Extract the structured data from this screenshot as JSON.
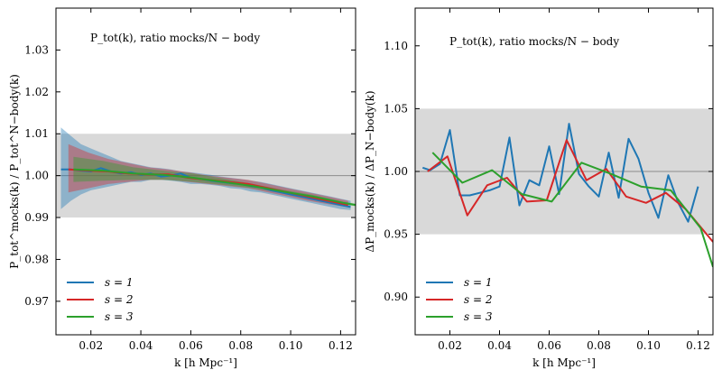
{
  "chart_data": [
    {
      "type": "line",
      "annotation": "P_tot(k), ratio mocks/N − body",
      "xlabel": "k [h Mpc⁻¹]",
      "ylabel": "P_tot^mocks(k) / P_tot^N−body(k)",
      "xlim": [
        0.006,
        0.126
      ],
      "ylim": [
        0.962,
        1.04
      ],
      "xticks": [
        0.02,
        0.04,
        0.06,
        0.08,
        0.1,
        0.12
      ],
      "xtick_labels": [
        "0.02",
        "0.04",
        "0.06",
        "0.08",
        "0.10",
        "0.12"
      ],
      "yticks": [
        0.97,
        0.98,
        0.99,
        1.0,
        1.01,
        1.02,
        1.03
      ],
      "ytick_labels": [
        "0.97",
        "0.98",
        "0.99",
        "1.00",
        "1.01",
        "1.02",
        "1.03"
      ],
      "reference_line": 1.0,
      "shaded_band": [
        0.99,
        1.01
      ],
      "legend_position": "lower-left",
      "grid": false,
      "series": [
        {
          "name": "s = 1",
          "color": "#1f77b4",
          "x": [
            0.008,
            0.012,
            0.016,
            0.02,
            0.024,
            0.028,
            0.032,
            0.036,
            0.04,
            0.044,
            0.048,
            0.052,
            0.056,
            0.06,
            0.064,
            0.068,
            0.072,
            0.076,
            0.08,
            0.084,
            0.088,
            0.092,
            0.096,
            0.1,
            0.104,
            0.108,
            0.112,
            0.116,
            0.12,
            0.124
          ],
          "y": [
            1.0015,
            1.0015,
            1.0012,
            1.001,
            1.0018,
            1.001,
            1.0005,
            1.0008,
            1.0002,
            1.0005,
            0.9998,
            1.0,
            1.0005,
            0.9995,
            0.9992,
            0.9988,
            0.9985,
            0.9982,
            0.998,
            0.9975,
            0.9972,
            0.9965,
            0.996,
            0.9955,
            0.995,
            0.9945,
            0.994,
            0.9935,
            0.993,
            0.9925
          ],
          "lower": [
            0.992,
            0.994,
            0.9955,
            0.9965,
            0.997,
            0.9975,
            0.998,
            0.9985,
            0.9985,
            0.999,
            0.999,
            0.9988,
            0.9985,
            0.998,
            0.998,
            0.9978,
            0.9975,
            0.997,
            0.9968,
            0.9962,
            0.996,
            0.9955,
            0.995,
            0.9945,
            0.994,
            0.9935,
            0.993,
            0.9925,
            0.992,
            0.9918
          ],
          "upper": [
            1.0115,
            1.0095,
            1.0075,
            1.0065,
            1.0055,
            1.0045,
            1.0035,
            1.003,
            1.0025,
            1.002,
            1.0018,
            1.0015,
            1.001,
            1.0008,
            1.0005,
            1.0002,
            0.9998,
            0.9995,
            0.9992,
            0.9988,
            0.9985,
            0.998,
            0.9975,
            0.997,
            0.9965,
            0.996,
            0.9955,
            0.995,
            0.9945,
            0.994
          ]
        },
        {
          "name": "s = 2",
          "color": "#d62728",
          "x": [
            0.011,
            0.019,
            0.027,
            0.035,
            0.043,
            0.051,
            0.059,
            0.067,
            0.075,
            0.083,
            0.091,
            0.099,
            0.107,
            0.115,
            0.123
          ],
          "y": [
            1.0015,
            1.0012,
            1.001,
            1.0005,
            1.0003,
            1.0003,
            0.9995,
            0.999,
            0.9985,
            0.998,
            0.997,
            0.996,
            0.995,
            0.994,
            0.993
          ],
          "lower": [
            0.996,
            0.997,
            0.998,
            0.9985,
            0.999,
            0.999,
            0.9985,
            0.998,
            0.9975,
            0.997,
            0.996,
            0.995,
            0.994,
            0.9932,
            0.9925
          ],
          "upper": [
            1.0075,
            1.0055,
            1.004,
            1.003,
            1.002,
            1.0015,
            1.0008,
            1.0,
            0.9995,
            0.999,
            0.998,
            0.997,
            0.996,
            0.995,
            0.994
          ]
        },
        {
          "name": "s = 3",
          "color": "#2ca02c",
          "x": [
            0.013,
            0.025,
            0.037,
            0.049,
            0.061,
            0.073,
            0.085,
            0.097,
            0.109,
            0.121,
            0.126
          ],
          "y": [
            1.0015,
            1.0012,
            1.0005,
            1.0002,
            0.9995,
            0.9985,
            0.9975,
            0.9962,
            0.995,
            0.9935,
            0.993
          ],
          "lower": [
            0.9985,
            0.9988,
            0.999,
            0.999,
            0.9985,
            0.9978,
            0.997,
            0.9958,
            0.9946,
            0.9932,
            0.9927
          ],
          "upper": [
            1.0045,
            1.0035,
            1.002,
            1.0012,
            1.0005,
            0.9993,
            0.998,
            0.9966,
            0.9954,
            0.9938,
            0.9933
          ]
        }
      ]
    },
    {
      "type": "line",
      "annotation": "P_tot(k), ratio mocks/N − body",
      "xlabel": "k [h Mpc⁻¹]",
      "ylabel": "ΔP_mocks(k) / ΔP_N−body(k)",
      "xlim": [
        0.006,
        0.126
      ],
      "ylim": [
        0.87,
        1.13
      ],
      "xticks": [
        0.02,
        0.04,
        0.06,
        0.08,
        0.1,
        0.12
      ],
      "xtick_labels": [
        "0.02",
        "0.04",
        "0.06",
        "0.08",
        "0.10",
        "0.12"
      ],
      "yticks": [
        0.9,
        0.95,
        1.0,
        1.05,
        1.1
      ],
      "ytick_labels": [
        "0.90",
        "0.95",
        "1.00",
        "1.05",
        "1.10"
      ],
      "reference_line": 1.0,
      "shaded_band": [
        0.95,
        1.05
      ],
      "legend_position": "lower-left",
      "grid": false,
      "series": [
        {
          "name": "s = 1",
          "color": "#1f77b4",
          "x": [
            0.009,
            0.012,
            0.016,
            0.02,
            0.024,
            0.028,
            0.032,
            0.036,
            0.04,
            0.044,
            0.048,
            0.052,
            0.056,
            0.06,
            0.064,
            0.068,
            0.072,
            0.076,
            0.08,
            0.084,
            0.088,
            0.092,
            0.096,
            0.1,
            0.104,
            0.108,
            0.112,
            0.116,
            0.12
          ],
          "y": [
            1.003,
            1.001,
            1.006,
            1.033,
            0.981,
            0.981,
            0.983,
            0.985,
            0.988,
            1.027,
            0.973,
            0.993,
            0.989,
            1.02,
            0.982,
            1.038,
            0.998,
            0.988,
            0.98,
            1.015,
            0.979,
            1.026,
            1.01,
            0.983,
            0.963,
            0.997,
            0.975,
            0.96,
            0.988
          ]
        },
        {
          "name": "s = 2",
          "color": "#d62728",
          "x": [
            0.011,
            0.019,
            0.027,
            0.035,
            0.043,
            0.051,
            0.059,
            0.067,
            0.075,
            0.083,
            0.091,
            0.099,
            0.107,
            0.115,
            0.126
          ],
          "y": [
            1.0,
            1.012,
            0.965,
            0.989,
            0.995,
            0.976,
            0.977,
            1.025,
            0.993,
            1.002,
            0.98,
            0.975,
            0.983,
            0.97,
            0.944
          ]
        },
        {
          "name": "s = 3",
          "color": "#2ca02c",
          "x": [
            0.013,
            0.025,
            0.037,
            0.049,
            0.061,
            0.073,
            0.085,
            0.097,
            0.109,
            0.121,
            0.126
          ],
          "y": [
            1.015,
            0.991,
            1.001,
            0.982,
            0.976,
            1.007,
            0.998,
            0.988,
            0.985,
            0.955,
            0.924
          ]
        }
      ]
    }
  ]
}
